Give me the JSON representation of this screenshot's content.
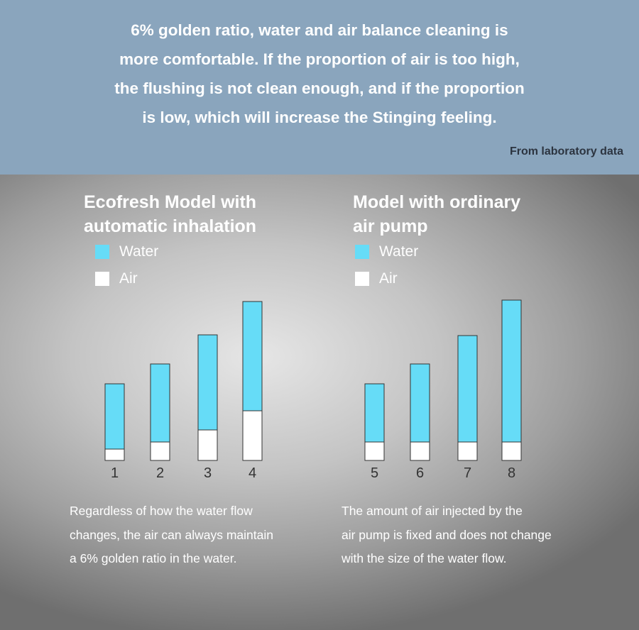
{
  "header": {
    "lines": [
      "6% golden ratio, water and air balance cleaning is",
      "more comfortable. If the proportion of air is too high,",
      "the flushing is not clean enough, and if the proportion",
      "is low, which will increase the Stinging feeling."
    ],
    "source": "From laboratory data"
  },
  "colors": {
    "water": "#66dcf7",
    "air": "#ffffff",
    "header_bg": "#8aa5bd"
  },
  "chart_data": [
    {
      "type": "bar",
      "stacked": true,
      "title_lines": [
        "Ecofresh Model with",
        "automatic inhalation"
      ],
      "categories": [
        "1",
        "2",
        "3",
        "4"
      ],
      "series": [
        {
          "name": "Water",
          "values": [
            92,
            110,
            134,
            154
          ]
        },
        {
          "name": "Air",
          "values": [
            16,
            26,
            43,
            70
          ]
        }
      ],
      "legend_position": "top-left",
      "caption_lines": [
        "Regardless of how the water flow",
        "changes, the air can always maintain",
        "a 6% golden ratio in the water."
      ]
    },
    {
      "type": "bar",
      "stacked": true,
      "title_lines": [
        "Model with ordinary",
        "air pump"
      ],
      "categories": [
        "5",
        "6",
        "7",
        "8"
      ],
      "series": [
        {
          "name": "Water",
          "values": [
            82,
            110,
            150,
            200
          ]
        },
        {
          "name": "Air",
          "values": [
            26,
            26,
            26,
            26
          ]
        }
      ],
      "legend_position": "top-left",
      "caption_lines": [
        "The amount of air injected by the",
        "air pump is fixed and does not change",
        "with the size of the water flow."
      ]
    }
  ]
}
